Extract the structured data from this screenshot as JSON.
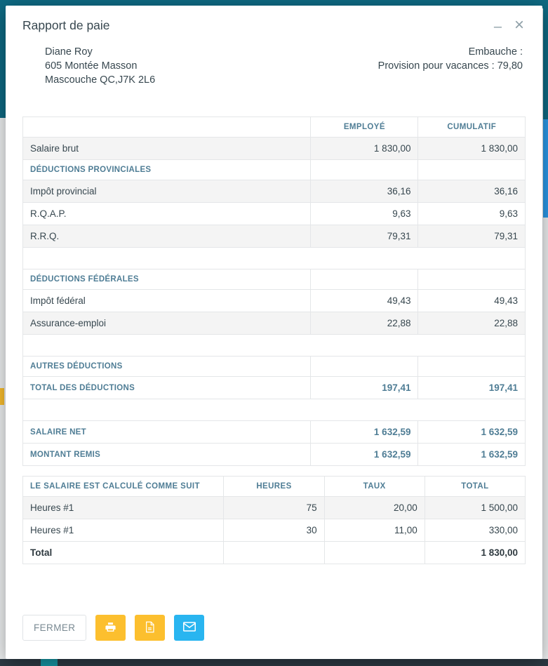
{
  "window": {
    "title": "Rapport de paie",
    "minimize_icon": "–",
    "close_icon": "×"
  },
  "employee": {
    "name": "Diane Roy",
    "address_line1": "605 Montée Masson",
    "address_line2": "Mascouche QC,J7K 2L6"
  },
  "meta": {
    "embauche_label": "Embauche :",
    "vacation_provision": "Provision pour vacances : 79,80"
  },
  "pay_table": {
    "headers": [
      "",
      "EMPLOYÉ",
      "CUMULATIF"
    ],
    "rows": [
      {
        "type": "item",
        "label": "Salaire brut",
        "employe": "1 830,00",
        "cumulatif": "1 830,00",
        "shaded": true
      },
      {
        "type": "section",
        "label": "DÉDUCTIONS PROVINCIALES",
        "employe": "",
        "cumulatif": "",
        "shaded": false
      },
      {
        "type": "item",
        "label": "Impôt provincial",
        "employe": "36,16",
        "cumulatif": "36,16",
        "shaded": true
      },
      {
        "type": "item",
        "label": "R.Q.A.P.",
        "employe": "9,63",
        "cumulatif": "9,63",
        "shaded": false
      },
      {
        "type": "item",
        "label": "R.R.Q.",
        "employe": "79,31",
        "cumulatif": "79,31",
        "shaded": true
      },
      {
        "type": "spacer"
      },
      {
        "type": "section",
        "label": "DÉDUCTIONS FÉDÉRALES",
        "employe": "",
        "cumulatif": "",
        "shaded": false
      },
      {
        "type": "item",
        "label": "Impôt fédéral",
        "employe": "49,43",
        "cumulatif": "49,43",
        "shaded": false
      },
      {
        "type": "item",
        "label": "Assurance-emploi",
        "employe": "22,88",
        "cumulatif": "22,88",
        "shaded": true
      },
      {
        "type": "spacer"
      },
      {
        "type": "section",
        "label": "AUTRES DÉDUCTIONS",
        "employe": "",
        "cumulatif": "",
        "shaded": false
      },
      {
        "type": "total",
        "label": "TOTAL DES DÉDUCTIONS",
        "employe": "197,41",
        "cumulatif": "197,41",
        "shaded": false
      },
      {
        "type": "spacer"
      },
      {
        "type": "total",
        "label": "SALAIRE NET",
        "employe": "1 632,59",
        "cumulatif": "1 632,59",
        "shaded": false
      },
      {
        "type": "total",
        "label": "MONTANT REMIS",
        "employe": "1 632,59",
        "cumulatif": "1 632,59",
        "shaded": false
      }
    ]
  },
  "salary_table": {
    "headers": [
      "LE SALAIRE EST CALCULÉ COMME SUIT",
      "HEURES",
      "TAUX",
      "TOTAL"
    ],
    "rows": [
      {
        "label": "Heures #1",
        "heures": "75",
        "taux": "20,00",
        "total": "1 500,00",
        "shaded": true,
        "bold": false
      },
      {
        "label": "Heures #1",
        "heures": "30",
        "taux": "11,00",
        "total": "330,00",
        "shaded": false,
        "bold": false
      },
      {
        "label": "Total",
        "heures": "",
        "taux": "",
        "total": "1 830,00",
        "shaded": false,
        "bold": true
      }
    ]
  },
  "footer": {
    "close_label": "FERMER",
    "print_icon": "printer",
    "pdf_icon": "file-pdf",
    "mail_icon": "envelope"
  },
  "colors": {
    "accent_teal": "#4f7d95",
    "amber": "#fcbf2e",
    "blue": "#29b5f0",
    "header_teal": "#0e6a83",
    "bottom_bar": "#2d3b45"
  }
}
